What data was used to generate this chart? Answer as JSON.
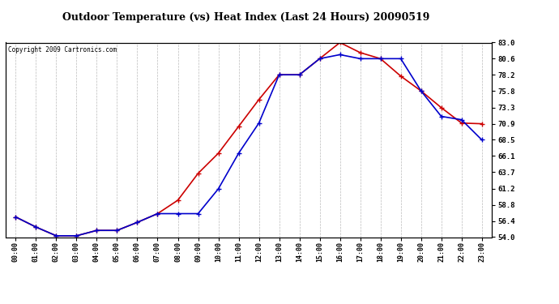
{
  "title": "Outdoor Temperature (vs) Heat Index (Last 24 Hours) 20090519",
  "copyright": "Copyright 2009 Cartronics.com",
  "hours": [
    "00:00",
    "01:00",
    "02:00",
    "03:00",
    "04:00",
    "05:00",
    "06:00",
    "07:00",
    "08:00",
    "09:00",
    "10:00",
    "11:00",
    "12:00",
    "13:00",
    "14:00",
    "15:00",
    "16:00",
    "17:00",
    "18:00",
    "19:00",
    "20:00",
    "21:00",
    "22:00",
    "23:00"
  ],
  "temp": [
    57.0,
    55.5,
    54.2,
    54.2,
    55.0,
    55.0,
    56.2,
    57.5,
    59.5,
    63.5,
    66.5,
    70.5,
    74.5,
    78.2,
    78.2,
    80.6,
    83.0,
    81.5,
    80.6,
    78.0,
    75.8,
    73.3,
    71.0,
    70.9
  ],
  "heat_index": [
    57.0,
    55.5,
    54.2,
    54.2,
    55.0,
    55.0,
    56.2,
    57.5,
    57.5,
    57.5,
    61.2,
    66.5,
    71.0,
    78.2,
    78.2,
    80.6,
    81.2,
    80.6,
    80.6,
    80.6,
    75.8,
    72.0,
    71.5,
    68.5
  ],
  "temp_color": "#cc0000",
  "heat_index_color": "#0000cc",
  "bg_color": "#ffffff",
  "plot_bg_color": "#ffffff",
  "grid_color": "#bbbbbb",
  "ylim_min": 54.0,
  "ylim_max": 83.0,
  "yticks": [
    54.0,
    56.4,
    58.8,
    61.2,
    63.7,
    66.1,
    68.5,
    70.9,
    73.3,
    75.8,
    78.2,
    80.6,
    83.0
  ]
}
